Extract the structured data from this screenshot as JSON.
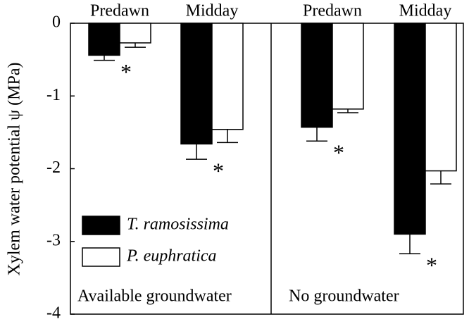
{
  "chart_data": {
    "type": "bar",
    "ylabel": "Xylem water potential ψ (MPa)",
    "ylim": [
      -4,
      0
    ],
    "yticks": [
      0,
      -1,
      -2,
      -3,
      -4
    ],
    "legend": "lower left",
    "series": [
      {
        "name": "T. ramosissima",
        "color": "#000000",
        "values": [
          [
            -0.44,
            -1.66
          ],
          [
            -1.43,
            -2.9
          ]
        ],
        "errors": [
          [
            0.07,
            0.21
          ],
          [
            0.19,
            0.27
          ]
        ]
      },
      {
        "name": "P. euphratica",
        "color": "#ffffff",
        "values": [
          [
            -0.27,
            -1.46
          ],
          [
            -1.18,
            -2.03
          ]
        ],
        "errors": [
          [
            0.06,
            0.18
          ],
          [
            0.05,
            0.18
          ]
        ]
      }
    ],
    "panels": [
      {
        "label": "Available groundwater",
        "categories": [
          "Predawn",
          "Midday"
        ],
        "annotations": [
          "*",
          "*"
        ]
      },
      {
        "label": "No groundwater",
        "categories": [
          "Predawn",
          "Midday"
        ],
        "annotations": [
          "*",
          "*"
        ]
      }
    ]
  }
}
